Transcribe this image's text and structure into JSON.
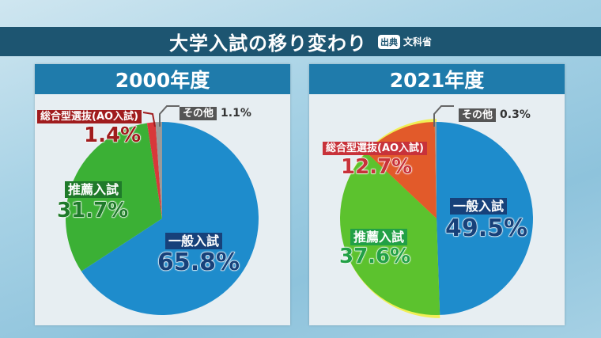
{
  "title": "大学入試の移り変わり",
  "source_badge": "出典",
  "source": "文科省",
  "chart_data": [
    {
      "type": "pie",
      "title": "2000年度",
      "categories": [
        "一般入試",
        "推薦入試",
        "総合型選抜(AO入試)",
        "その他"
      ],
      "values": [
        65.8,
        31.7,
        1.4,
        1.1
      ],
      "labels": [
        "65.8%",
        "31.7%",
        "1.4%",
        "1.1%"
      ],
      "colors": [
        "#1e8ccc",
        "#3bb035",
        "#d8383a",
        "#9a9a9a"
      ],
      "direction": "clockwise from top"
    },
    {
      "type": "pie",
      "title": "2021年度",
      "categories": [
        "一般入試",
        "推薦入試",
        "総合型選抜(AO入試)",
        "その他"
      ],
      "values": [
        49.5,
        37.6,
        12.7,
        0.3
      ],
      "labels": [
        "49.5%",
        "37.6%",
        "12.7%",
        "0.3%"
      ],
      "colors": [
        "#1e8ccc",
        "#5cc22e",
        "#e25a2a",
        "#9a9a9a"
      ],
      "direction": "clockwise from top"
    }
  ]
}
